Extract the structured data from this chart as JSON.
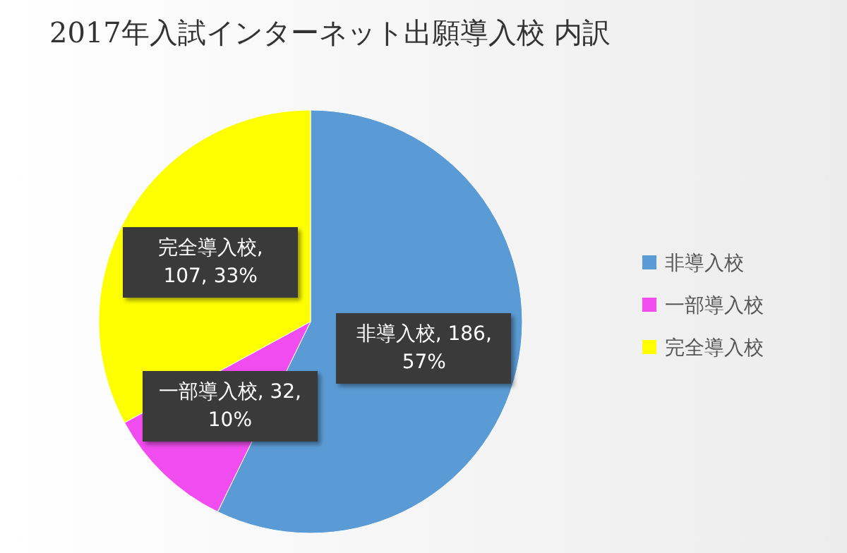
{
  "chart_data": {
    "type": "pie",
    "title": "2017年入試インターネット出願導入校  内訳",
    "categories": [
      "非導入校",
      "一部導入校",
      "完全導入校"
    ],
    "values": [
      186,
      32,
      107
    ],
    "colors": [
      "#5b9bd5",
      "#f04cf0",
      "#ffff00"
    ],
    "value_labels": [
      "非導入校, 186, 57%",
      "一部導入校, 32, 10%",
      "完全導入校, 107, 33%"
    ],
    "legend": "right"
  }
}
